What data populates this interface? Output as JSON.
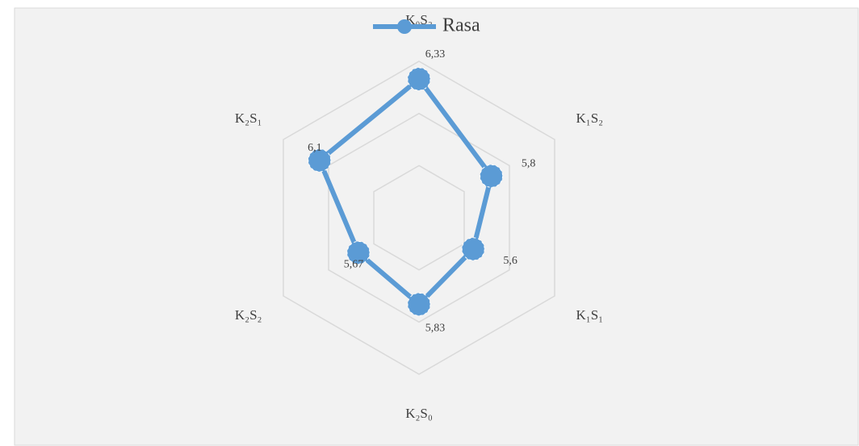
{
  "chart_data": {
    "type": "radar",
    "categories": [
      "K₀S₂",
      "K₁S₂",
      "K₁S₁",
      "K₂S₀",
      "K₂S₂",
      "K₂S₁"
    ],
    "series": [
      {
        "name": "Rasa",
        "color": "#5b9bd5",
        "values": [
          6.33,
          5.8,
          5.6,
          5.83,
          5.67,
          6.1
        ],
        "value_labels": [
          "6,33",
          "5,8",
          "5,6",
          "5,83",
          "5,67",
          "6,1"
        ]
      }
    ],
    "rlim": [
      5,
      6.5
    ],
    "rticks": [
      5.5,
      6,
      6.5
    ],
    "grid": true,
    "legend": "top"
  }
}
